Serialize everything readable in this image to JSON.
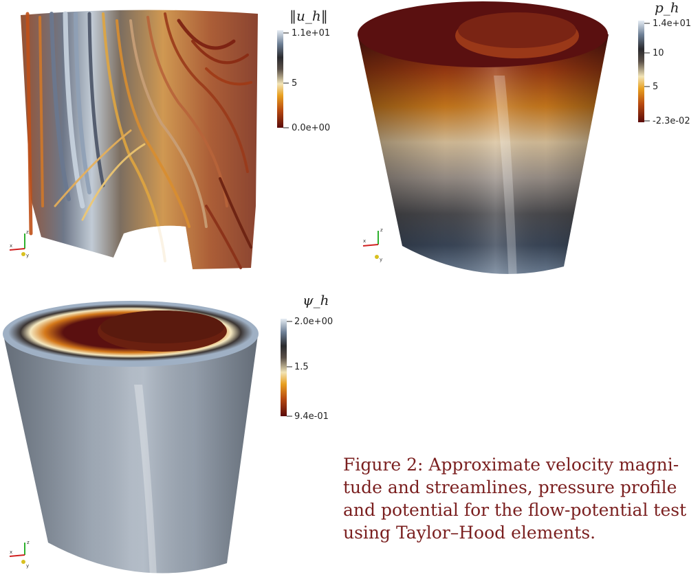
{
  "panels": {
    "velocity": {
      "colorbar_title": "‖u_h‖",
      "tick_max": "1.1e+01",
      "tick_mid": "5",
      "tick_min": "0.0e+00"
    },
    "pressure": {
      "colorbar_title": "p_h",
      "tick_max": "1.4e+01",
      "tick_mid_high": "10",
      "tick_mid_low": "5",
      "tick_min": "-2.3e-02"
    },
    "potential": {
      "colorbar_title": "ψ_h",
      "tick_max": "2.0e+00",
      "tick_mid": "1.5",
      "tick_min": "9.4e-01"
    }
  },
  "axes_triad": {
    "x": "x",
    "y": "y",
    "z": "z"
  },
  "caption": {
    "label": "Figure 2:",
    "line1": "Approximate velocity magni-",
    "line2": "tude and streamlines, pressure profile",
    "line3": "and potential for the flow-potential test",
    "line4": "using Taylor–Hood elements."
  },
  "colors": {
    "map_dark_red": "#5a0a0a",
    "map_orange": "#d88a1a",
    "map_cream": "#efe6c8",
    "map_dark": "#2b2b2b",
    "map_slate": "#6d7f95",
    "map_light_blue": "#d9e4ef",
    "caption_color": "#7a1f1f"
  }
}
